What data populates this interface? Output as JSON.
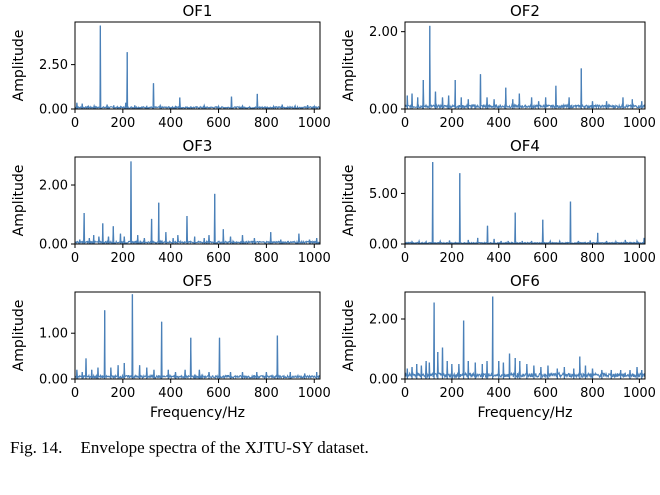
{
  "figure": {
    "caption_label": "Fig. 14.",
    "caption_text": "Envelope spectra of the XJTU-SY dataset."
  },
  "chart_data": [
    {
      "type": "line",
      "id": "OF1",
      "title": "OF1",
      "xlabel": "",
      "ylabel": "Amplitude",
      "xlim": [
        0,
        1024
      ],
      "ylim": [
        0,
        4.9
      ],
      "xticks": [
        0,
        200,
        400,
        600,
        800,
        1000
      ],
      "yticks": [
        0,
        2.5
      ],
      "ytick_labels": [
        "0.00",
        "2.50"
      ],
      "baseline": 0.1,
      "peaks": [
        [
          8,
          0.35
        ],
        [
          30,
          0.3
        ],
        [
          56,
          0.15
        ],
        [
          80,
          0.18
        ],
        [
          106,
          4.7
        ],
        [
          134,
          0.25
        ],
        [
          162,
          0.2
        ],
        [
          212,
          0.35
        ],
        [
          218,
          3.2
        ],
        [
          250,
          0.2
        ],
        [
          300,
          0.15
        ],
        [
          328,
          1.45
        ],
        [
          356,
          0.2
        ],
        [
          420,
          0.15
        ],
        [
          438,
          0.65
        ],
        [
          540,
          0.2
        ],
        [
          600,
          0.15
        ],
        [
          654,
          0.7
        ],
        [
          700,
          0.18
        ],
        [
          762,
          0.85
        ],
        [
          830,
          0.15
        ],
        [
          866,
          0.25
        ],
        [
          920,
          0.18
        ],
        [
          972,
          0.22
        ],
        [
          1000,
          0.15
        ]
      ]
    },
    {
      "type": "line",
      "id": "OF2",
      "title": "OF2",
      "xlabel": "",
      "ylabel": "Amplitude",
      "xlim": [
        0,
        1024
      ],
      "ylim": [
        0,
        2.25
      ],
      "xticks": [
        0,
        200,
        400,
        600,
        800,
        1000
      ],
      "yticks": [
        0,
        2.0
      ],
      "ytick_labels": [
        "0.00",
        "2.00"
      ],
      "baseline": 0.08,
      "peaks": [
        [
          10,
          0.35
        ],
        [
          30,
          0.4
        ],
        [
          54,
          0.3
        ],
        [
          78,
          0.75
        ],
        [
          106,
          2.15
        ],
        [
          130,
          0.45
        ],
        [
          160,
          0.3
        ],
        [
          186,
          0.35
        ],
        [
          214,
          0.75
        ],
        [
          240,
          0.3
        ],
        [
          270,
          0.25
        ],
        [
          322,
          0.9
        ],
        [
          350,
          0.3
        ],
        [
          380,
          0.25
        ],
        [
          430,
          0.55
        ],
        [
          460,
          0.25
        ],
        [
          488,
          0.4
        ],
        [
          540,
          0.3
        ],
        [
          570,
          0.2
        ],
        [
          600,
          0.3
        ],
        [
          644,
          0.6
        ],
        [
          700,
          0.3
        ],
        [
          752,
          1.05
        ],
        [
          800,
          0.2
        ],
        [
          860,
          0.2
        ],
        [
          930,
          0.3
        ],
        [
          970,
          0.25
        ],
        [
          1010,
          0.2
        ]
      ]
    },
    {
      "type": "line",
      "id": "OF3",
      "title": "OF3",
      "xlabel": "",
      "ylabel": "Amplitude",
      "xlim": [
        0,
        1024
      ],
      "ylim": [
        0,
        2.95
      ],
      "xticks": [
        0,
        200,
        400,
        600,
        800,
        1000
      ],
      "yticks": [
        0,
        2.0
      ],
      "ytick_labels": [
        "0.00",
        "2.00"
      ],
      "baseline": 0.07,
      "peaks": [
        [
          20,
          0.15
        ],
        [
          38,
          1.05
        ],
        [
          60,
          0.2
        ],
        [
          78,
          0.3
        ],
        [
          100,
          0.25
        ],
        [
          116,
          0.7
        ],
        [
          140,
          0.25
        ],
        [
          160,
          0.6
        ],
        [
          190,
          0.35
        ],
        [
          206,
          0.25
        ],
        [
          234,
          2.8
        ],
        [
          262,
          0.3
        ],
        [
          290,
          0.2
        ],
        [
          320,
          0.85
        ],
        [
          350,
          1.4
        ],
        [
          380,
          0.4
        ],
        [
          410,
          0.2
        ],
        [
          430,
          0.3
        ],
        [
          468,
          0.95
        ],
        [
          500,
          0.25
        ],
        [
          540,
          0.2
        ],
        [
          560,
          0.3
        ],
        [
          584,
          1.7
        ],
        [
          620,
          0.5
        ],
        [
          650,
          0.25
        ],
        [
          700,
          0.3
        ],
        [
          750,
          0.2
        ],
        [
          818,
          0.4
        ],
        [
          860,
          0.15
        ],
        [
          936,
          0.35
        ],
        [
          980,
          0.15
        ],
        [
          1010,
          0.2
        ]
      ]
    },
    {
      "type": "line",
      "id": "OF4",
      "title": "OF4",
      "xlabel": "",
      "ylabel": "Amplitude",
      "xlim": [
        0,
        1024
      ],
      "ylim": [
        0,
        8.6
      ],
      "xticks": [
        0,
        200,
        400,
        600,
        800,
        1000
      ],
      "yticks": [
        0,
        5.0
      ],
      "ytick_labels": [
        "0.00",
        "5.00"
      ],
      "baseline": 0.12,
      "peaks": [
        [
          30,
          0.25
        ],
        [
          60,
          0.3
        ],
        [
          90,
          0.25
        ],
        [
          118,
          8.1
        ],
        [
          150,
          0.3
        ],
        [
          190,
          0.35
        ],
        [
          234,
          7.0
        ],
        [
          270,
          0.4
        ],
        [
          310,
          0.6
        ],
        [
          352,
          1.8
        ],
        [
          380,
          0.5
        ],
        [
          410,
          0.3
        ],
        [
          440,
          0.3
        ],
        [
          470,
          3.1
        ],
        [
          500,
          0.3
        ],
        [
          540,
          0.3
        ],
        [
          588,
          2.4
        ],
        [
          620,
          0.3
        ],
        [
          660,
          0.3
        ],
        [
          706,
          4.2
        ],
        [
          740,
          0.3
        ],
        [
          790,
          0.35
        ],
        [
          822,
          1.1
        ],
        [
          860,
          0.3
        ],
        [
          900,
          0.25
        ],
        [
          940,
          0.4
        ],
        [
          990,
          0.3
        ],
        [
          1020,
          0.6
        ]
      ]
    },
    {
      "type": "line",
      "id": "OF5",
      "title": "OF5",
      "xlabel": "Frequency/Hz",
      "ylabel": "Amplitude",
      "xlim": [
        0,
        1024
      ],
      "ylim": [
        0,
        1.9
      ],
      "xticks": [
        0,
        200,
        400,
        600,
        800,
        1000
      ],
      "yticks": [
        0,
        1.0
      ],
      "ytick_labels": [
        "0.00",
        "1.00"
      ],
      "baseline": 0.06,
      "peaks": [
        [
          8,
          0.2
        ],
        [
          30,
          0.15
        ],
        [
          46,
          0.45
        ],
        [
          70,
          0.2
        ],
        [
          96,
          0.25
        ],
        [
          124,
          1.5
        ],
        [
          150,
          0.25
        ],
        [
          180,
          0.3
        ],
        [
          206,
          0.35
        ],
        [
          240,
          1.85
        ],
        [
          270,
          0.3
        ],
        [
          300,
          0.25
        ],
        [
          330,
          0.2
        ],
        [
          362,
          1.25
        ],
        [
          390,
          0.2
        ],
        [
          420,
          0.15
        ],
        [
          460,
          0.2
        ],
        [
          484,
          0.9
        ],
        [
          520,
          0.2
        ],
        [
          560,
          0.15
        ],
        [
          604,
          0.9
        ],
        [
          650,
          0.15
        ],
        [
          700,
          0.15
        ],
        [
          760,
          0.15
        ],
        [
          800,
          0.15
        ],
        [
          846,
          0.95
        ],
        [
          900,
          0.15
        ],
        [
          960,
          0.12
        ],
        [
          1010,
          0.15
        ]
      ]
    },
    {
      "type": "line",
      "id": "OF6",
      "title": "OF6",
      "xlabel": "Frequency/Hz",
      "ylabel": "Amplitude",
      "xlim": [
        0,
        1024
      ],
      "ylim": [
        0,
        2.9
      ],
      "xticks": [
        0,
        200,
        400,
        600,
        800,
        1000
      ],
      "yticks": [
        0,
        2.0
      ],
      "ytick_labels": [
        "0.00",
        "2.00"
      ],
      "baseline": 0.15,
      "peaks": [
        [
          10,
          0.35
        ],
        [
          30,
          0.4
        ],
        [
          50,
          0.5
        ],
        [
          70,
          0.45
        ],
        [
          90,
          0.6
        ],
        [
          104,
          0.55
        ],
        [
          124,
          2.55
        ],
        [
          140,
          0.9
        ],
        [
          160,
          1.05
        ],
        [
          180,
          0.6
        ],
        [
          200,
          0.5
        ],
        [
          230,
          0.5
        ],
        [
          250,
          1.95
        ],
        [
          270,
          0.6
        ],
        [
          300,
          0.55
        ],
        [
          330,
          0.5
        ],
        [
          350,
          0.6
        ],
        [
          374,
          2.75
        ],
        [
          400,
          0.6
        ],
        [
          420,
          0.55
        ],
        [
          446,
          0.85
        ],
        [
          470,
          0.7
        ],
        [
          490,
          0.6
        ],
        [
          520,
          0.5
        ],
        [
          550,
          0.45
        ],
        [
          580,
          0.4
        ],
        [
          610,
          0.45
        ],
        [
          650,
          0.35
        ],
        [
          680,
          0.4
        ],
        [
          720,
          0.35
        ],
        [
          746,
          0.75
        ],
        [
          770,
          0.45
        ],
        [
          800,
          0.35
        ],
        [
          840,
          0.3
        ],
        [
          880,
          0.3
        ],
        [
          920,
          0.3
        ],
        [
          960,
          0.3
        ],
        [
          990,
          0.4
        ],
        [
          1010,
          0.3
        ]
      ]
    }
  ]
}
